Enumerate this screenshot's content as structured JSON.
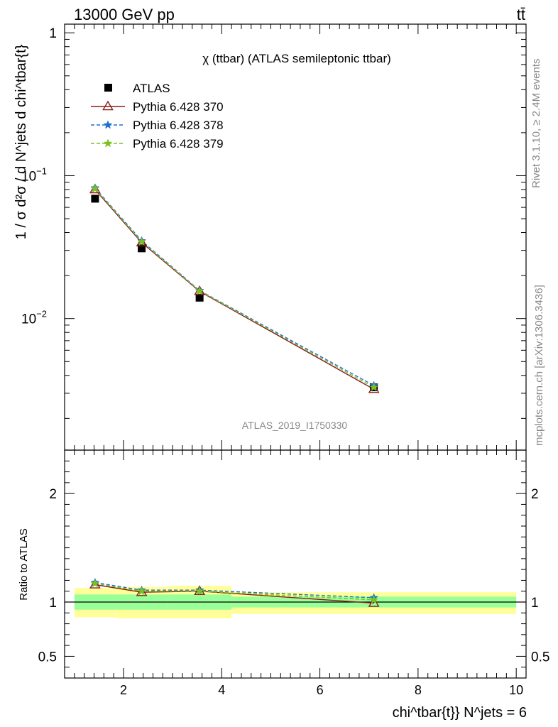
{
  "header": {
    "energy": "13000 GeV pp",
    "process": "tt̄",
    "side_top": "Rivet 3.1.10, ≥ 2.4M events",
    "side_bottom": "mcplots.cern.ch [arXiv:1306.3436]",
    "plot_id": "ATLAS_2019_I1750330"
  },
  "labels": {
    "title": "χ (ttbar) (ATLAS semileptonic ttbar)",
    "ylabel_main": "1 / σ d²σ / d N^jets d chi^tbar{t}",
    "ylabel_ratio": "Ratio to ATLAS",
    "xlabel": "chi^tbar{t}} N^jets = 6"
  },
  "chart_data": {
    "type": "scatter",
    "x_range": [
      0.8,
      10.2
    ],
    "x_ticks": [
      "2",
      "4",
      "6",
      "8",
      "10"
    ],
    "main": {
      "yscale": "log",
      "y_range": [
        0.0012,
        1.15
      ],
      "y_ticks": [
        {
          "value": 1,
          "label": "1"
        },
        {
          "value": 0.1,
          "label": "10^-1"
        },
        {
          "value": 0.01,
          "label": "10^-2"
        }
      ]
    },
    "ratio": {
      "yscale": "linear",
      "y_range": [
        0.3,
        2.4
      ],
      "y_ticks": [
        "0.5",
        "1",
        "2"
      ]
    },
    "bins": [
      {
        "lo": 1.0,
        "hi": 1.85,
        "x": 1.42
      },
      {
        "lo": 1.85,
        "hi": 2.9,
        "x": 2.37
      },
      {
        "lo": 2.9,
        "hi": 4.2,
        "x": 3.55
      },
      {
        "lo": 4.2,
        "hi": 10.0,
        "x": 7.1
      }
    ],
    "data": {
      "name": "ATLAS",
      "color": "#000000",
      "y": [
        0.069,
        0.031,
        0.014,
        0.0033
      ],
      "ratio_band_inner": [
        [
          0.93,
          1.07
        ],
        [
          0.93,
          1.07
        ],
        [
          0.93,
          1.07
        ],
        [
          0.95,
          1.05
        ]
      ],
      "ratio_band_outer": [
        [
          0.86,
          1.13
        ],
        [
          0.85,
          1.14
        ],
        [
          0.85,
          1.15
        ],
        [
          0.89,
          1.09
        ]
      ]
    },
    "series": [
      {
        "name": "Pythia 6.428 370",
        "color": "#8b1a1a",
        "marker": "triangle-open",
        "line": "solid",
        "y": [
          0.08,
          0.034,
          0.0155,
          0.0032
        ],
        "ratio": [
          1.16,
          1.09,
          1.1,
          0.99
        ]
      },
      {
        "name": "Pythia 6.428 378",
        "color": "#1f6fd0",
        "marker": "star",
        "line": "dashed",
        "y": [
          0.082,
          0.035,
          0.0157,
          0.0034
        ],
        "ratio": [
          1.18,
          1.11,
          1.11,
          1.04
        ]
      },
      {
        "name": "Pythia 6.428 379",
        "color": "#7ac21f",
        "marker": "star",
        "line": "dashed",
        "y": [
          0.081,
          0.0345,
          0.0156,
          0.0033
        ],
        "ratio": [
          1.17,
          1.1,
          1.1,
          1.02
        ]
      }
    ],
    "legend_position": "top-left"
  }
}
